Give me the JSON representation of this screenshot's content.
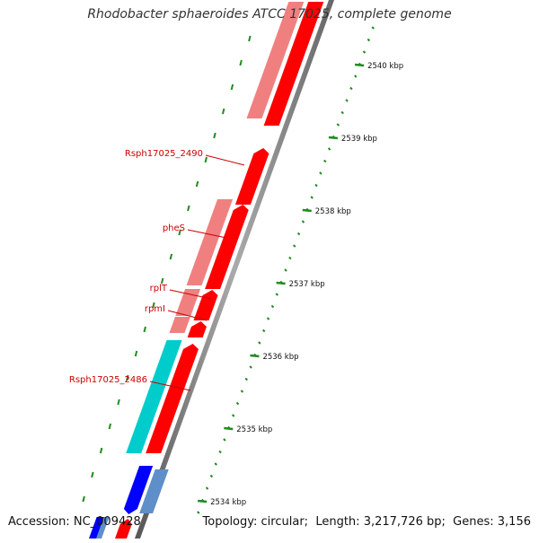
{
  "title": "Rhodobacter sphaeroides ATCC 17025, complete genome",
  "footer": {
    "accession_label": "Accession:",
    "accession": "NC_009428",
    "topology_label": "Topology:",
    "topology": "circular",
    "length_label": "Length:",
    "length": "3,217,726 bp",
    "genes_label": "Genes:",
    "genes": "3,156"
  },
  "colors": {
    "forward_cds": "#ff0000",
    "forward_cds_light": "#f08080",
    "reverse_cds_teal": "#00cccc",
    "reverse_cds_blue": "#0000ff",
    "reverse_cds_steel": "#5f8fc8",
    "tick": "#228b22",
    "gene_label": "#cc0000",
    "backbone": "#888888"
  },
  "ruler_ticks": [
    "2534 kbp",
    "2535 kbp",
    "2536 kbp",
    "2537 kbp",
    "2538 kbp",
    "2539 kbp",
    "2540 kbp"
  ],
  "gene_labels": [
    "Rsph17025_2490",
    "pheS",
    "rplT",
    "rpmI",
    "Rsph17025_2486"
  ]
}
